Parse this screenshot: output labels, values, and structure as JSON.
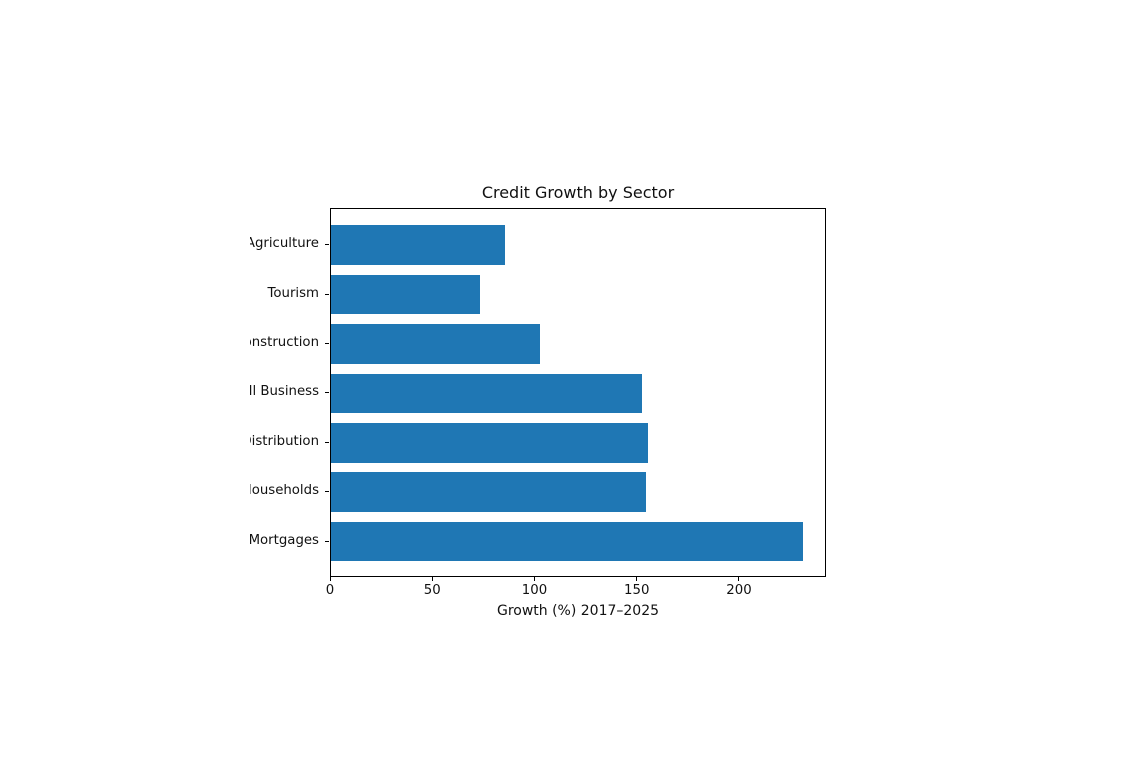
{
  "chart_data": {
    "type": "bar",
    "orientation": "horizontal",
    "title": "Credit Growth by Sector",
    "xlabel": "Growth (%) 2017–2025",
    "ylabel": "",
    "categories": [
      "Agriculture",
      "Tourism",
      "Construction",
      "Small Business",
      "Distribution",
      "Households",
      "Mortgages"
    ],
    "categories_visible_fragments": [
      "griculture",
      "Tourism",
      "nstruction",
      "l Business",
      "istribution",
      "ouseholds",
      "Mortgages"
    ],
    "values": [
      85,
      73,
      102,
      152,
      155,
      154,
      231
    ],
    "x_ticks": [
      0,
      50,
      100,
      150,
      200
    ],
    "xlim": [
      0,
      242.55
    ],
    "bar_color": "#1f77b4",
    "grid": false,
    "legend": null
  }
}
